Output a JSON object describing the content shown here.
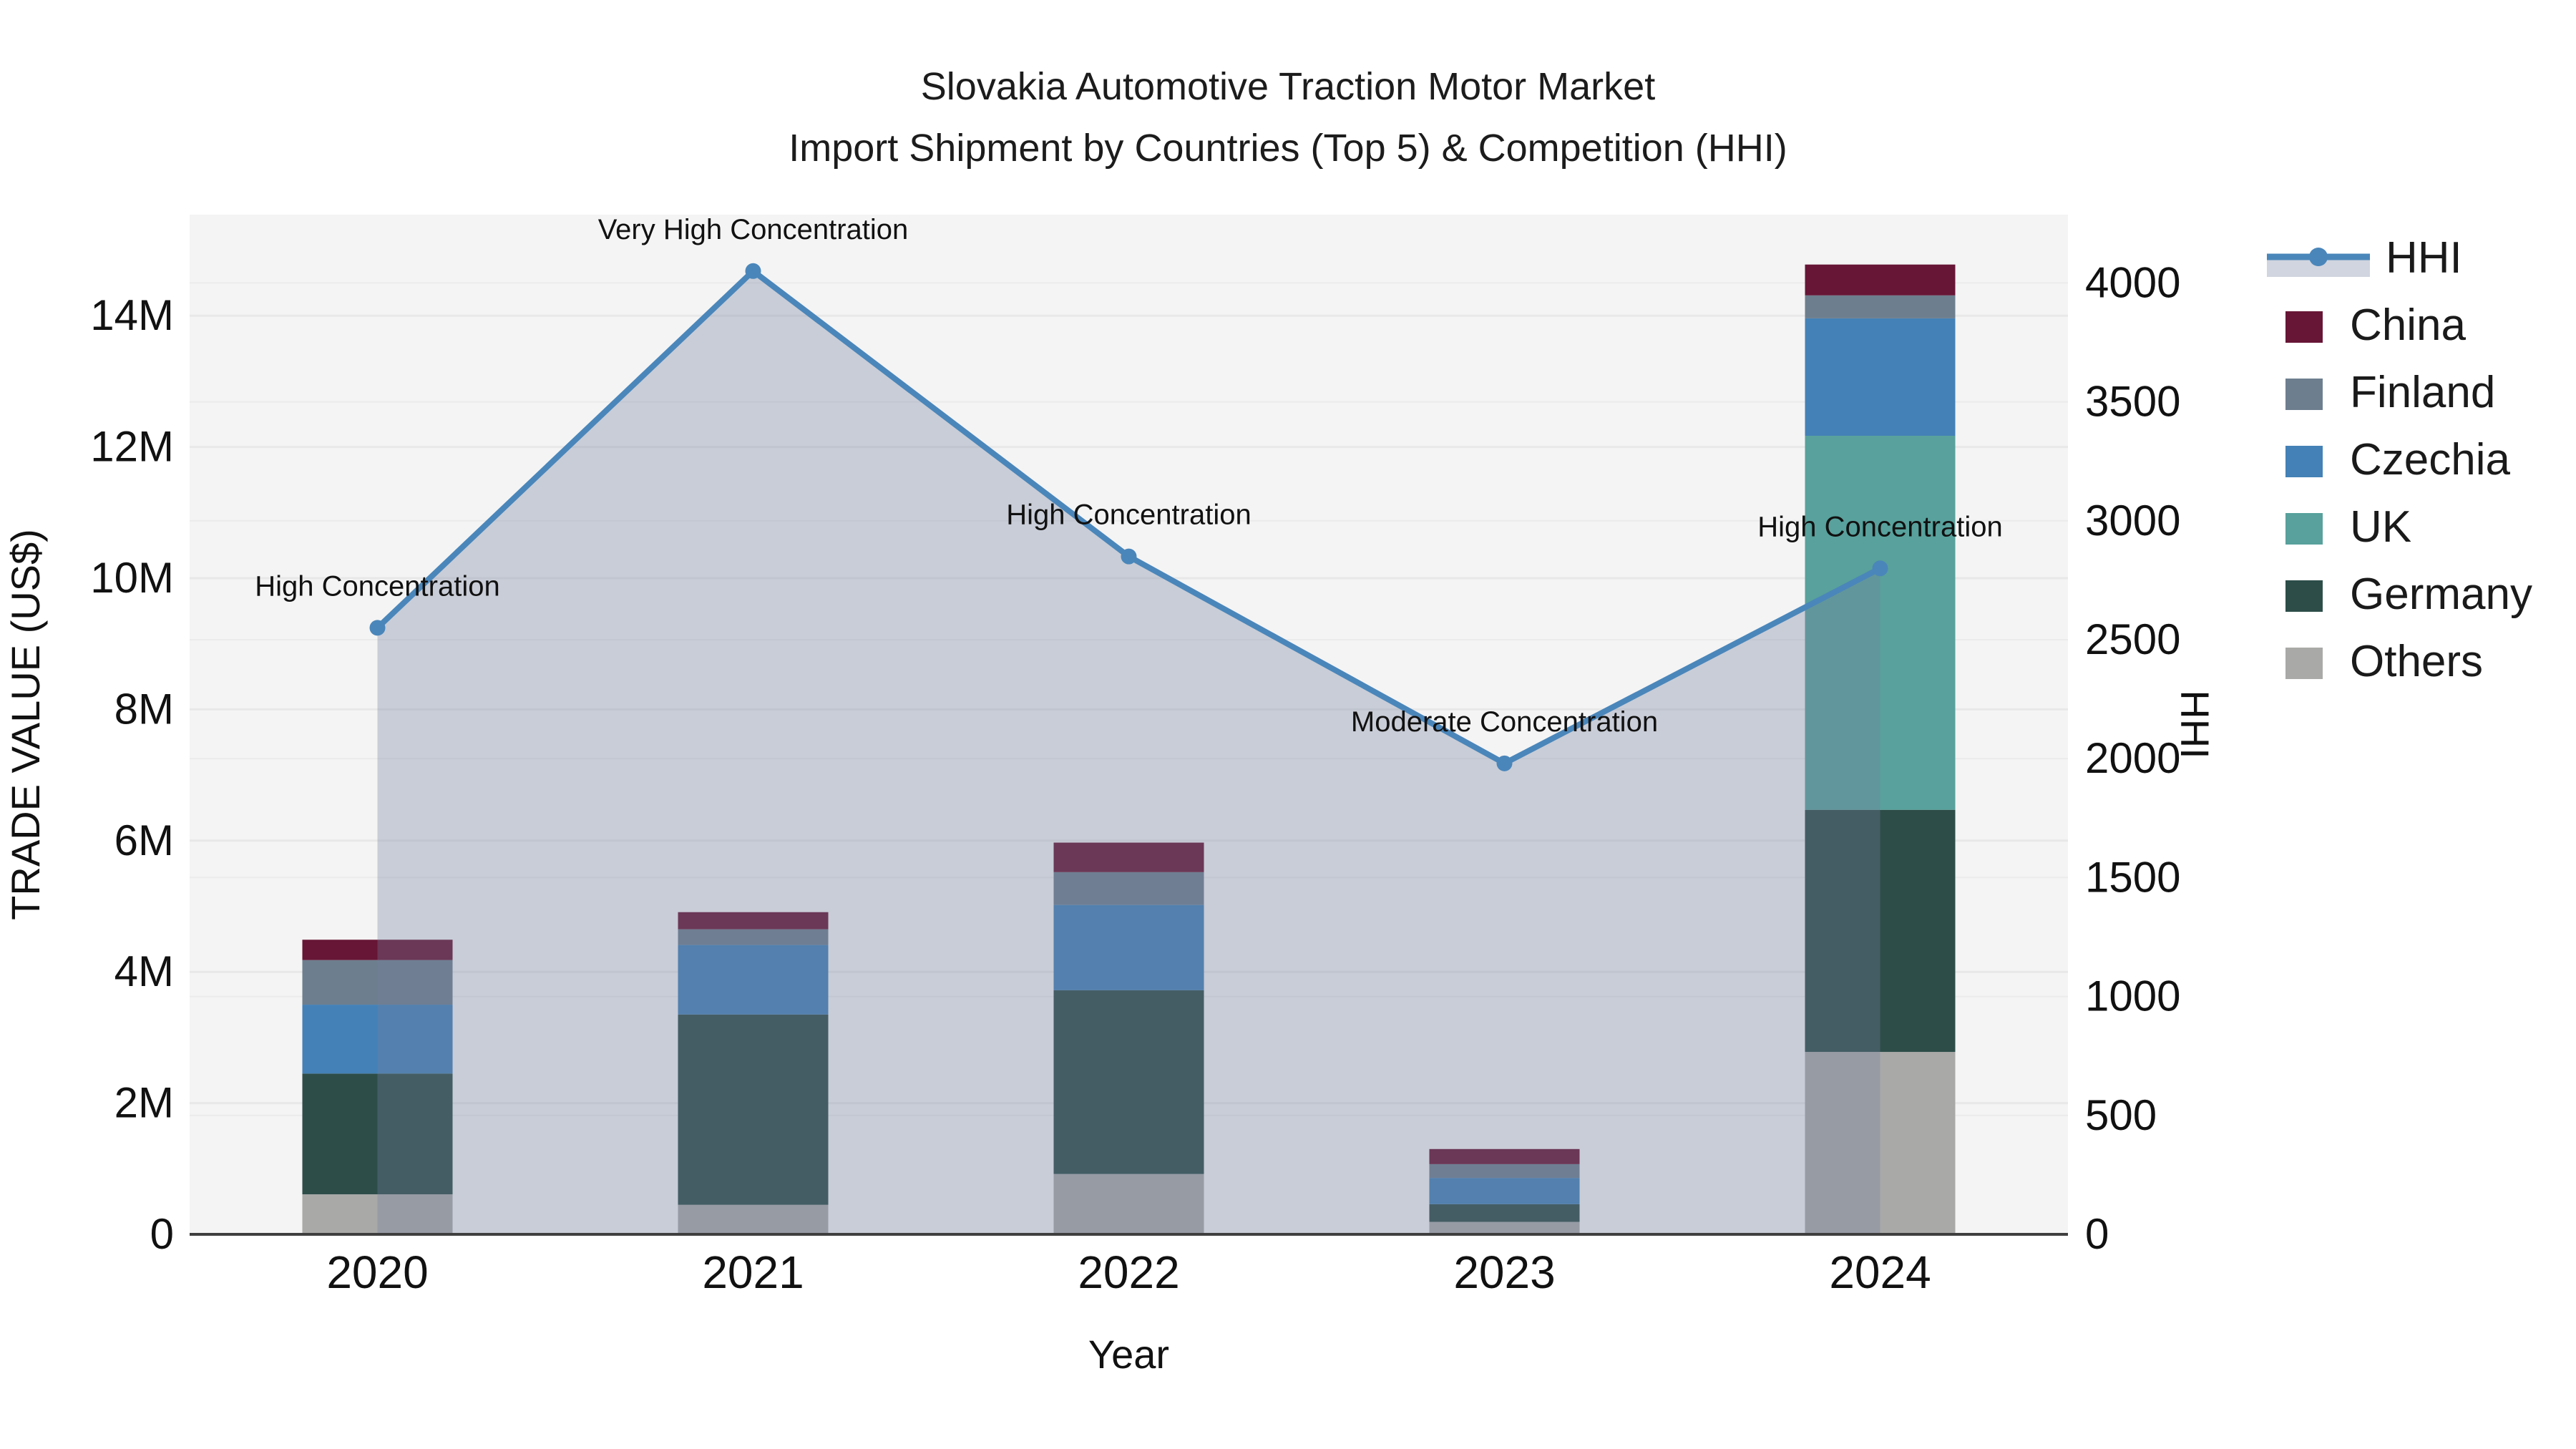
{
  "title": {
    "line1": "Slovakia Automotive Traction Motor Market",
    "line2": "Import Shipment by Countries (Top 5) & Competition (HHI)"
  },
  "chart_data": {
    "type": "bar+line",
    "title": "Slovakia Automotive Traction Motor Market Import Shipment by Countries (Top 5) & Competition (HHI)",
    "xlabel": "Year",
    "ylabel": "TRADE VALUE (US$)",
    "y2label": "HHI",
    "categories": [
      "2020",
      "2021",
      "2022",
      "2023",
      "2024"
    ],
    "bar_unit": "millions US$",
    "stack_note": "series listed top-of-legend first; stacked bottom-to-top in reverse order (Others at bottom, China on top)",
    "series": [
      {
        "name": "China",
        "color": "#671635",
        "values": [
          0.31,
          0.26,
          0.45,
          0.23,
          0.47
        ]
      },
      {
        "name": "Finland",
        "color": "#6d7e8e",
        "values": [
          0.68,
          0.24,
          0.5,
          0.21,
          0.35
        ]
      },
      {
        "name": "Czechia",
        "color": "#4381b6",
        "values": [
          1.05,
          1.06,
          1.3,
          0.4,
          1.79
        ]
      },
      {
        "name": "UK",
        "color": "#58a19c",
        "values": [
          0.0,
          0.0,
          0.0,
          0.0,
          5.7
        ]
      },
      {
        "name": "Germany",
        "color": "#2d4d49",
        "values": [
          1.84,
          2.9,
          2.8,
          0.27,
          3.69
        ]
      },
      {
        "name": "Others",
        "color": "#a9a9a7",
        "values": [
          0.61,
          0.45,
          0.92,
          0.19,
          2.78
        ]
      }
    ],
    "hhi": {
      "name": "HHI",
      "values": [
        2550,
        4050,
        2850,
        1980,
        2800
      ],
      "annotations": [
        "High Concentration",
        "Very High Concentration",
        "High Concentration",
        "Moderate Concentration",
        "High Concentration"
      ]
    },
    "y_ticks": [
      "0",
      "2M",
      "4M",
      "6M",
      "8M",
      "10M",
      "12M",
      "14M"
    ],
    "y_tick_values": [
      0,
      2,
      4,
      6,
      8,
      10,
      12,
      14
    ],
    "ylim": [
      0,
      15.54
    ],
    "y2_ticks": [
      "0",
      "500",
      "1000",
      "1500",
      "2000",
      "2500",
      "3000",
      "3500",
      "4000"
    ],
    "y2_tick_values": [
      0,
      500,
      1000,
      1500,
      2000,
      2500,
      3000,
      3500,
      4000
    ],
    "y2lim": [
      0,
      4287
    ],
    "grid": true,
    "legend_position": "right",
    "legend_labels": [
      "HHI",
      "China",
      "Finland",
      "Czechia",
      "UK",
      "Germany",
      "Others"
    ]
  },
  "colors": {
    "hhi_line": "#4a86ba",
    "area_fill": "#727e9f",
    "area_fill_opacity": 0.33,
    "plot_background": "#f4f4f4",
    "gridline": "#e8e8e8",
    "axis_line": "#3f3f3f",
    "text": "#111111"
  }
}
